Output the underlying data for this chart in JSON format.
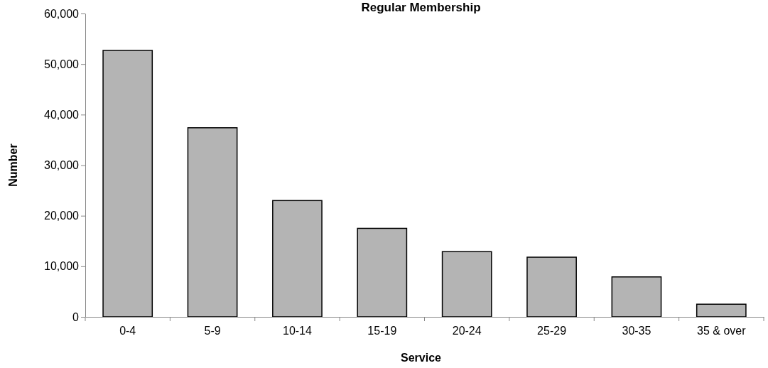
{
  "chart_data": {
    "type": "bar",
    "title": "Regular Membership",
    "xlabel": "Service",
    "ylabel": "Number",
    "categories": [
      "0-4",
      "5-9",
      "10-14",
      "15-19",
      "20-24",
      "25-29",
      "30-35",
      "35 & over"
    ],
    "values": [
      52700,
      37400,
      23000,
      17500,
      12900,
      11800,
      7900,
      2500
    ],
    "color": "#b4b4b4",
    "ylim": [
      0,
      60000
    ],
    "yticks": [
      {
        "value": 0,
        "label": "0"
      },
      {
        "value": 10000,
        "label": "10,000"
      },
      {
        "value": 20000,
        "label": "20,000"
      },
      {
        "value": 30000,
        "label": "30,000"
      },
      {
        "value": 40000,
        "label": "40,000"
      },
      {
        "value": 50000,
        "label": "50,000"
      },
      {
        "value": 60000,
        "label": "60,000"
      }
    ],
    "grid": false
  }
}
